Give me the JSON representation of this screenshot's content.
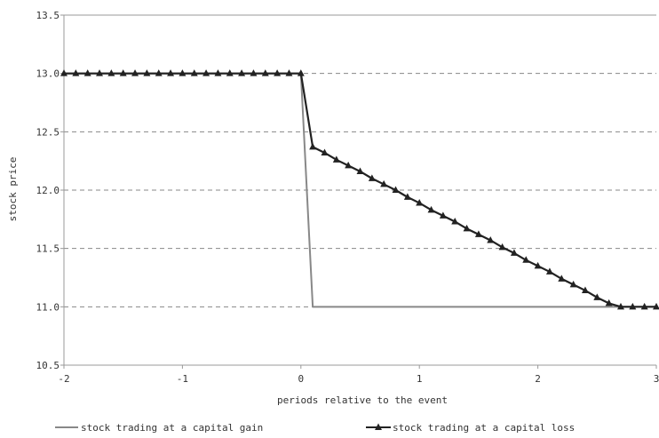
{
  "chart_data": {
    "type": "line",
    "xlabel": "periods relative to the event",
    "ylabel": "stock price",
    "xlim": [
      -2,
      3
    ],
    "ylim": [
      10.5,
      13.5
    ],
    "x_ticks": [
      "-2",
      "-1",
      "0",
      "1",
      "2",
      "3"
    ],
    "y_ticks": [
      "10.5",
      "11.0",
      "11.5",
      "12.0",
      "12.5",
      "13.0",
      "13.5"
    ],
    "grid": "horizontal dashed",
    "legend_position": "bottom",
    "series": [
      {
        "name": "stock trading at a capital gain",
        "color": "#888888",
        "marker": "none",
        "x": [
          -2,
          0,
          0.1,
          3
        ],
        "y": [
          13.0,
          13.0,
          11.0,
          11.0
        ]
      },
      {
        "name": "stock trading at a capital loss",
        "color": "#222222",
        "marker": "triangle",
        "x": [
          -2.0,
          -1.9,
          -1.8,
          -1.7,
          -1.6,
          -1.5,
          -1.4,
          -1.3,
          -1.2,
          -1.1,
          -1.0,
          -0.9,
          -0.8,
          -0.7,
          -0.6,
          -0.5,
          -0.4,
          -0.3,
          -0.2,
          -0.1,
          0.0,
          0.1,
          0.2,
          0.3,
          0.4,
          0.5,
          0.6,
          0.7,
          0.8,
          0.9,
          1.0,
          1.1,
          1.2,
          1.3,
          1.4,
          1.5,
          1.6,
          1.7,
          1.8,
          1.9,
          2.0,
          2.1,
          2.2,
          2.3,
          2.4,
          2.5,
          2.6,
          2.7,
          2.8,
          2.9,
          3.0
        ],
        "y": [
          13.0,
          13.0,
          13.0,
          13.0,
          13.0,
          13.0,
          13.0,
          13.0,
          13.0,
          13.0,
          13.0,
          13.0,
          13.0,
          13.0,
          13.0,
          13.0,
          13.0,
          13.0,
          13.0,
          13.0,
          13.0,
          12.37,
          12.32,
          12.26,
          12.21,
          12.16,
          12.1,
          12.05,
          12.0,
          11.94,
          11.89,
          11.83,
          11.78,
          11.73,
          11.67,
          11.62,
          11.57,
          11.51,
          11.46,
          11.4,
          11.35,
          11.3,
          11.24,
          11.19,
          11.14,
          11.08,
          11.03,
          11.0,
          11.0,
          11.0,
          11.0
        ]
      }
    ]
  }
}
